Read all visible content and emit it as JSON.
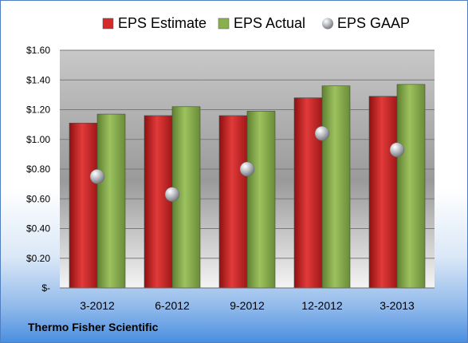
{
  "chart_data": {
    "type": "bar",
    "categories": [
      "3-2012",
      "6-2012",
      "9-2012",
      "12-2012",
      "3-2013"
    ],
    "series": [
      {
        "name": "EPS Estimate",
        "kind": "bar",
        "color": "#d42a2a",
        "values": [
          1.11,
          1.16,
          1.16,
          1.28,
          1.29
        ]
      },
      {
        "name": "EPS Actual",
        "kind": "bar",
        "color": "#8ab04e",
        "values": [
          1.17,
          1.22,
          1.19,
          1.36,
          1.37
        ]
      },
      {
        "name": "EPS GAAP",
        "kind": "marker",
        "color": "#b0b4b8",
        "values": [
          0.75,
          0.63,
          0.8,
          1.04,
          0.93
        ]
      }
    ],
    "yticks": [
      "$-",
      "$0.20",
      "$0.40",
      "$0.60",
      "$0.80",
      "$1.00",
      "$1.20",
      "$1.40",
      "$1.60"
    ],
    "ylim": [
      0,
      1.6
    ],
    "grid": true,
    "legend_position": "top"
  },
  "footer": {
    "company": "Thermo Fisher Scientific"
  }
}
